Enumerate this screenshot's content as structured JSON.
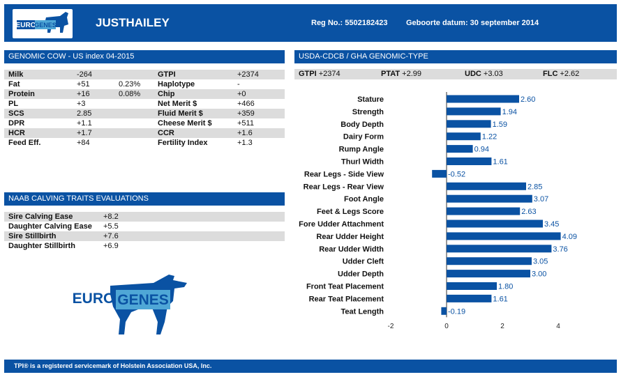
{
  "header": {
    "logo_text_left": "EURO",
    "logo_text_right": "GENES",
    "cow_name": "JUSTHAILEY",
    "reg_no": "Reg No.: 5502182423",
    "birth_date": "Geboorte datum: 30 september 2014"
  },
  "genomic": {
    "title": "GENOMIC COW - US index 04-2015",
    "rows": [
      {
        "l1": "Milk",
        "v1": "-264",
        "p1": "",
        "l2": "GTPI",
        "v2": "+2374"
      },
      {
        "l1": "Fat",
        "v1": "+51",
        "p1": "0.23%",
        "l2": "Haplotype",
        "v2": "-"
      },
      {
        "l1": "Protein",
        "v1": "+16",
        "p1": "0.08%",
        "l2": "Chip",
        "v2": "+0"
      },
      {
        "l1": "PL",
        "v1": "+3",
        "p1": "",
        "l2": "Net Merit $",
        "v2": "+466"
      },
      {
        "l1": "SCS",
        "v1": "2.85",
        "p1": "",
        "l2": "Fluid Merit $",
        "v2": "+359"
      },
      {
        "l1": "DPR",
        "v1": "+1.1",
        "p1": "",
        "l2": "Cheese Merit $",
        "v2": "+511"
      },
      {
        "l1": "HCR",
        "v1": "+1.7",
        "p1": "",
        "l2": "CCR",
        "v2": "+1.6"
      },
      {
        "l1": "Feed Eff.",
        "v1": "+84",
        "p1": "",
        "l2": "Fertility Index",
        "v2": "+1.3"
      }
    ]
  },
  "calving": {
    "title": "NAAB CALVING TRAITS EVALUATIONS",
    "rows": [
      {
        "label": "Sire Calving Ease",
        "value": "+8.2"
      },
      {
        "label": "Daughter Calving Ease",
        "value": "+5.5"
      },
      {
        "label": "Sire Stillbirth",
        "value": "+7.6"
      },
      {
        "label": "Daughter Stillbirth",
        "value": "+6.9"
      }
    ]
  },
  "type_section": {
    "title": "USDA-CDCB / GHA GENOMIC-TYPE",
    "gtpi_label": "GTPI",
    "gtpi_value": "+2374",
    "ptat_label": "PTAT",
    "ptat_value": "+2.99",
    "udc_label": "UDC",
    "udc_value": "+3.03",
    "flc_label": "FLC",
    "flc_value": "+2.62"
  },
  "chart_data": {
    "type": "bar",
    "orientation": "horizontal",
    "categories": [
      "Stature",
      "Strength",
      "Body Depth",
      "Dairy Form",
      "Rump Angle",
      "Thurl Width",
      "Rear Legs - Side View",
      "Rear Legs - Rear View",
      "Foot Angle",
      "Feet & Legs Score",
      "Fore Udder Attachment",
      "Rear Udder Height",
      "Rear Udder Width",
      "Udder Cleft",
      "Udder Depth",
      "Front Teat Placement",
      "Rear Teat Placement",
      "Teat Length"
    ],
    "values": [
      2.6,
      1.94,
      1.59,
      1.22,
      0.94,
      1.61,
      -0.52,
      2.85,
      3.07,
      2.63,
      3.45,
      4.09,
      3.76,
      3.05,
      3.0,
      1.8,
      1.61,
      -0.19
    ],
    "value_labels": [
      "2.60",
      "1.94",
      "1.59",
      "1.22",
      "0.94",
      "1.61",
      "-0.52",
      "2.85",
      "3.07",
      "2.63",
      "3.45",
      "4.09",
      "3.76",
      "3.05",
      "3.00",
      "1.80",
      "1.61",
      "-0.19"
    ],
    "xlim": [
      -2,
      4
    ],
    "xticks": [
      "-2",
      "0",
      "2",
      "4"
    ],
    "grid": false,
    "bar_color": "#0a52a3"
  },
  "big_logo": {
    "left": "EURO",
    "right": "GENES"
  },
  "footer": {
    "text": "TPI® is a registered servicemark of Holstein Association USA, Inc."
  },
  "colors": {
    "primary": "#0a52a3",
    "accent": "#4fa7d6",
    "row_shade": "#dcdcdc"
  }
}
